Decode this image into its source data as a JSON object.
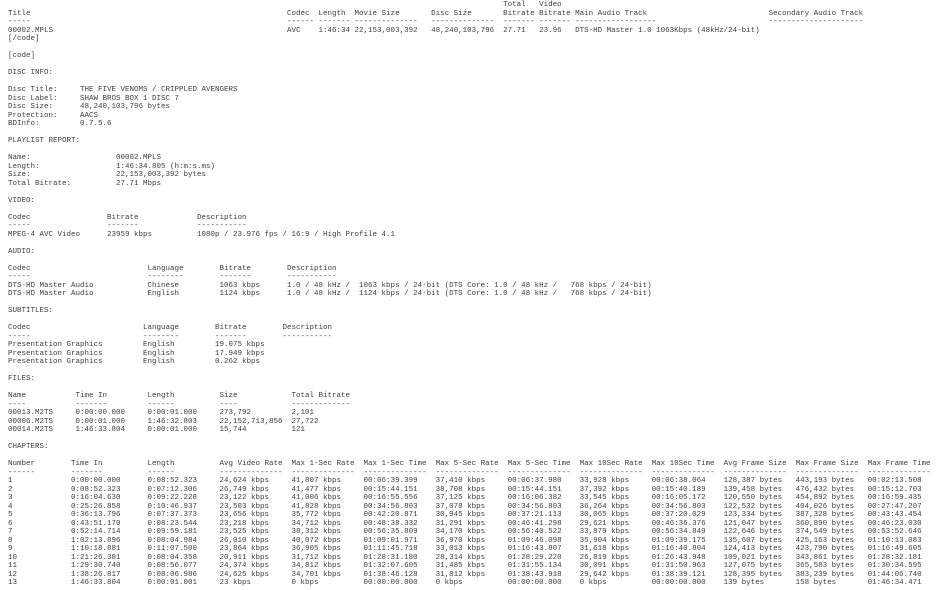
{
  "report": {
    "summary": {
      "stacked_header": [
        "Total",
        "Video"
      ],
      "columns": [
        "Title",
        "Codec",
        "Length",
        "Movie Size",
        "Disc Size",
        "Bitrate",
        "Bitrate",
        "Main Audio Track",
        "Secondary Audio Track"
      ],
      "row": [
        "00002.MPLS",
        "AVC",
        "1:46:34",
        "22,153,003,392",
        "48,240,103,796",
        "27.71",
        "23.96",
        "DTS-HD Master 1.0 1063Kbps (48kHz/24-bit)",
        ""
      ]
    },
    "code_tags": {
      "close": "[/code]",
      "open": "[code]"
    },
    "disc_info": {
      "heading": "DISC INFO:",
      "fields": [
        [
          "Disc Title:",
          "THE FIVE VENOMS / CRIPPLED AVENGERS"
        ],
        [
          "Disc Label:",
          "SHAW BROS BOX 1 DISC 7"
        ],
        [
          "Disc Size:",
          "48,240,103,796 bytes"
        ],
        [
          "Protection:",
          "AACS"
        ],
        [
          "BDInfo:",
          "0.7.5.6"
        ]
      ]
    },
    "playlist_report": {
      "heading": "PLAYLIST REPORT:",
      "fields": [
        [
          "Name:",
          "00002.MPLS"
        ],
        [
          "Length:",
          "1:46:34.805 (h:m:s.ms)"
        ],
        [
          "Size:",
          "22,153,003,392 bytes"
        ],
        [
          "Total Bitrate:",
          "27.71 Mbps"
        ]
      ]
    },
    "video": {
      "heading": "VIDEO:",
      "columns": [
        "Codec",
        "Bitrate",
        "Description"
      ],
      "rows": [
        [
          "MPEG-4 AVC Video",
          "23959 kbps",
          "1080p / 23.976 fps / 16:9 / High Profile 4.1"
        ]
      ]
    },
    "audio": {
      "heading": "AUDIO:",
      "columns": [
        "Codec",
        "Language",
        "Bitrate",
        "Description"
      ],
      "rows": [
        [
          "DTS-HD Master Audio",
          "Chinese",
          "1063 kbps",
          "1.0 / 48 kHz /  1063 kbps / 24-bit (DTS Core: 1.0 / 48 kHz /   768 kbps / 24-bit)"
        ],
        [
          "DTS-HD Master Audio",
          "English",
          "1124 kbps",
          "1.0 / 48 kHz /  1124 kbps / 24-bit (DTS Core: 1.0 / 48 kHz /   768 kbps / 24-bit)"
        ]
      ]
    },
    "subtitles": {
      "heading": "SUBTITLES:",
      "columns": [
        "Codec",
        "Language",
        "Bitrate",
        "Description"
      ],
      "rows": [
        [
          "Presentation Graphics",
          "English",
          "19.075 kbps",
          ""
        ],
        [
          "Presentation Graphics",
          "English",
          "17.949 kbps",
          ""
        ],
        [
          "Presentation Graphics",
          "English",
          "0.262 kbps",
          ""
        ]
      ]
    },
    "files": {
      "heading": "FILES:",
      "columns": [
        "Name",
        "Time In",
        "Length",
        "Size",
        "Total Bitrate"
      ],
      "rows": [
        [
          "00013.M2TS",
          "0:00:00.000",
          "0:00:01.000",
          "273,792",
          "2,101"
        ],
        [
          "00006.M2TS",
          "0:00:01.000",
          "1:46:32.803",
          "22,152,713,856",
          "27,722"
        ],
        [
          "00014.M2TS",
          "1:46:33.804",
          "0:00:01.000",
          "15,744",
          "121"
        ]
      ]
    },
    "chapters": {
      "heading": "CHAPTERS:",
      "columns": [
        "Number",
        "Time In",
        "Length",
        "Avg Video Rate",
        "Max 1-Sec Rate",
        "Max 1-Sec Time",
        "Max 5-Sec Rate",
        "Max 5-Sec Time",
        "Max 10Sec Rate",
        "Max 10Sec Time",
        "Avg Frame Size",
        "Max Frame Size",
        "Max Frame Time"
      ],
      "rows": [
        [
          "1",
          "0:00:00.000",
          "0:08:52.323",
          "24,624 kbps",
          "41,807 kbps",
          "00:06:39.399",
          "37,410 kbps",
          "00:06:37.980",
          "33,928 kbps",
          "00:06:38.064",
          "128,387 bytes",
          "443,193 bytes",
          "00:02:13.508"
        ],
        [
          "2",
          "0:08:52.323",
          "0:07:12.306",
          "26,749 kbps",
          "41,477 kbps",
          "00:15:44.151",
          "38,708 kbps",
          "00:15:44.151",
          "37,392 kbps",
          "00:15:40.189",
          "139,458 bytes",
          "476,432 bytes",
          "00:15:12.703"
        ],
        [
          "3",
          "0:16:04.630",
          "0:09:22.228",
          "23,122 kbps",
          "41,006 kbps",
          "00:16:55.556",
          "37,125 kbps",
          "00:16:06.382",
          "33,545 kbps",
          "00:16:05.172",
          "120,550 bytes",
          "454,892 bytes",
          "00:16:59.435"
        ],
        [
          "4",
          "0:25:26.858",
          "0:10:46.937",
          "23,503 kbps",
          "41,828 kbps",
          "00:34:56.803",
          "37,078 kbps",
          "00:34:56.803",
          "36,264 kbps",
          "00:34:56.803",
          "122,532 bytes",
          "404,026 bytes",
          "00:27:47.207"
        ],
        [
          "5",
          "0:36:13.796",
          "0:07:37.373",
          "23,656 kbps",
          "35,772 kbps",
          "00:42:20.871",
          "30,945 kbps",
          "00:37:21.113",
          "30,065 kbps",
          "00:37:20.029",
          "123,334 bytes",
          "387,328 bytes",
          "00:43:43.454"
        ],
        [
          "6",
          "0:43:51.170",
          "0:08:23.544",
          "23,218 kbps",
          "34,712 kbps",
          "00:48:38.332",
          "31,291 kbps",
          "00:46:41.298",
          "29,621 kbps",
          "00:46:36.376",
          "121,047 bytes",
          "360,890 bytes",
          "00:46:23.030"
        ],
        [
          "7",
          "0:52:14.714",
          "0:09:59.181",
          "23,525 kbps",
          "38,312 kbps",
          "00:56:35.809",
          "34,170 kbps",
          "00:56:40.522",
          "33,879 kbps",
          "00:56:34.849",
          "122,646 bytes",
          "374,549 bytes",
          "00:53:52.646"
        ],
        [
          "8",
          "1:02:13.896",
          "0:08:04.984",
          "26,010 kbps",
          "40,072 kbps",
          "01:09:01.971",
          "36,970 kbps",
          "01:09:46.098",
          "35,904 kbps",
          "01:09:39.175",
          "135,607 bytes",
          "425,163 bytes",
          "01:10:13.083"
        ],
        [
          "9",
          "1:10:18.881",
          "0:11:07.500",
          "23,864 kbps",
          "36,905 kbps",
          "01:11:45.718",
          "33,013 kbps",
          "01:16:43.807",
          "31,618 kbps",
          "01:16:40.804",
          "124,413 bytes",
          "423,790 bytes",
          "01:16:49.605"
        ],
        [
          "10",
          "1:21:26.381",
          "0:08:04.358",
          "20,911 kbps",
          "31,712 kbps",
          "01:28:31.180",
          "28,314 kbps",
          "01:28:29.220",
          "26,819 kbps",
          "01:26:43.948",
          "109,021 bytes",
          "343,861 bytes",
          "01:28:32.181"
        ],
        [
          "11",
          "1:29:30.740",
          "0:08:56.077",
          "24,374 kbps",
          "34,812 kbps",
          "01:32:07.605",
          "31,485 kbps",
          "01:31:55.134",
          "30,091 kbps",
          "01:31:50.963",
          "127,075 bytes",
          "365,583 bytes",
          "01:30:34.595"
        ],
        [
          "12",
          "1:38:26.817",
          "0:08:06.986",
          "24,625 kbps",
          "34,701 kbps",
          "01:38:46.128",
          "31,812 kbps",
          "01:38:43.918",
          "29,642 kbps",
          "01:38:39.121",
          "128,395 bytes",
          "383,239 bytes",
          "01:44:06.740"
        ],
        [
          "13",
          "1:46:33.804",
          "0:00:01.001",
          "23 kbps",
          "0 kbps",
          "00:00:00.000",
          "0 kbps",
          "00:00:00.000",
          "0 kbps",
          "00:00:00.000",
          "139 bytes",
          "158 bytes",
          "01:46:34.471"
        ]
      ]
    }
  }
}
